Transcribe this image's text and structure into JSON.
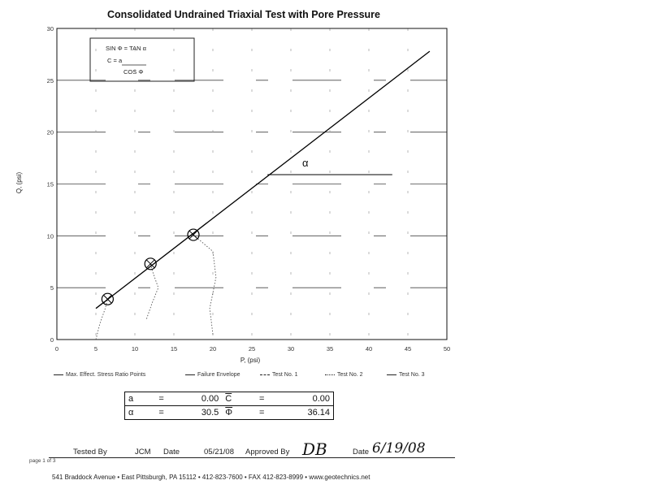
{
  "chart_data": {
    "type": "scatter",
    "title": "Consolidated Undrained Triaxial Test with Pore Pressure",
    "xlabel": "P, (psi)",
    "ylabel": "Q, (psi)",
    "xlim": [
      0,
      50
    ],
    "ylim": [
      0,
      30
    ],
    "xticks": [
      "0",
      "5",
      "10",
      "15",
      "20",
      "25",
      "30",
      "35",
      "40",
      "45",
      "50"
    ],
    "yticks": [
      "0",
      "5",
      "10",
      "15",
      "20",
      "25",
      "30"
    ],
    "grid": true,
    "points": [
      {
        "x": 6.5,
        "y": 3.9
      },
      {
        "x": 12.0,
        "y": 7.3
      },
      {
        "x": 17.5,
        "y": 10.1
      }
    ],
    "failure_envelope": {
      "x": [
        5.0,
        47.8
      ],
      "y": [
        3.0,
        27.8
      ]
    },
    "stress_paths": [
      {
        "x": [
          5.0,
          5.5,
          6.2,
          6.5
        ],
        "y": [
          0.0,
          1.5,
          3.0,
          3.9
        ]
      },
      {
        "x": [
          11.5,
          12.2,
          13.0,
          12.3,
          12.0
        ],
        "y": [
          2.0,
          3.5,
          5.0,
          6.5,
          7.3
        ]
      },
      {
        "x": [
          20.0,
          19.6,
          20.4,
          20.0,
          17.5
        ],
        "y": [
          0.5,
          3.0,
          6.0,
          8.5,
          10.1
        ]
      }
    ],
    "annotations": {
      "alpha_symbol": "α",
      "formula_line1": "SIN Φ = TAN α",
      "formula_line2": "C = a",
      "formula_line3": "COS Φ"
    },
    "legend_position": "bottom",
    "legend": [
      "Max. Effect. Stress Ratio Points",
      "Failure Envelope",
      "Test No. 1",
      "Test No. 2",
      "Test No. 3"
    ]
  },
  "results": {
    "a_label": "a",
    "a_value": "0.00",
    "c_label": "C",
    "c_value": "0.00",
    "alpha_label": "α",
    "alpha_value": "30.5",
    "phi_label": "Φ",
    "phi_value": "36.14",
    "eq": "="
  },
  "footer": {
    "page": "page 1 of 3",
    "tested_by_label": "Tested By",
    "tested_by_value": "JCM",
    "date_label": "Date",
    "date_value": "05/21/08",
    "approved_by_label": "Approved By",
    "approved_by_value": "DB",
    "date2_label": "Date",
    "date2_value": "6/19/08",
    "address": "541 Braddock Avenue  •  East Pittsburgh, PA 15112  •  412-823-7600  •  FAX 412-823-8999  •  www.geotechnics.net"
  }
}
